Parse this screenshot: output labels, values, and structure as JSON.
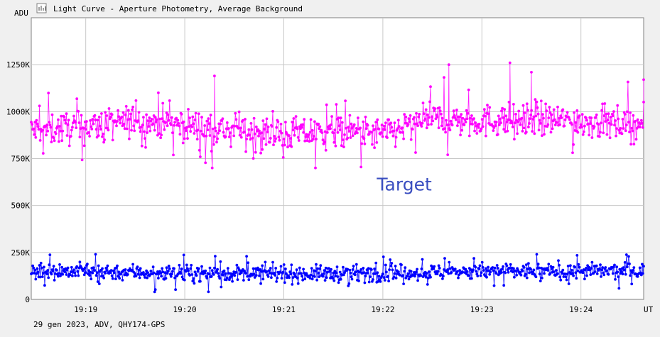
{
  "window": {
    "title": "Light Curve - Aperture Photometry, Average Background",
    "title_icon": "light-curve-icon"
  },
  "footer_text": "29 gen 2023, ADV, QHY174-GPS",
  "chart_data": {
    "type": "scatter",
    "title": "Light Curve - Aperture Photometry, Average Background",
    "ylabel": "ADU",
    "xlabel": "UT",
    "ylim": [
      0,
      1500000
    ],
    "xlim": [
      "19:18:27",
      "19:24:38"
    ],
    "yticks": [
      0,
      250000,
      500000,
      750000,
      1000000,
      1250000
    ],
    "ytick_labels": [
      "0",
      "250K",
      "500K",
      "750K",
      "1000K",
      "1250K"
    ],
    "xticks": [
      "19:19",
      "19:20",
      "19:21",
      "19:22",
      "19:23",
      "19:24"
    ],
    "grid": true,
    "annotations": [
      {
        "text": "Target",
        "x": "19:22:13",
        "y": 580000
      }
    ],
    "series": [
      {
        "color": "#ff00ff",
        "marker": "dot",
        "line": "thin vertical connectors",
        "mean_profile": {
          "x": [
            "19:18:27",
            "19:19:00",
            "19:19:30",
            "19:20:00",
            "19:20:30",
            "19:21:00",
            "19:21:30",
            "19:22:00",
            "19:22:30",
            "19:23:00",
            "19:23:30",
            "19:24:00",
            "19:24:38"
          ],
          "y": [
            900000,
            920000,
            950000,
            930000,
            900000,
            880000,
            890000,
            880000,
            960000,
            950000,
            960000,
            950000,
            930000
          ]
        },
        "typical_range": [
          780000,
          1080000
        ],
        "min": 700000,
        "max": 1260000,
        "peaks": [
          {
            "x": "19:22:40",
            "y": 1250000
          },
          {
            "x": "19:23:17",
            "y": 1260000
          },
          {
            "x": "19:20:18",
            "y": 1190000
          },
          {
            "x": "19:23:30",
            "y": 1210000
          },
          {
            "x": "19:24:38",
            "y": 1170000
          }
        ]
      },
      {
        "color": "#0000ff",
        "marker": "dot",
        "line": "thin vertical connectors",
        "mean_profile": {
          "x": [
            "19:18:27",
            "19:19:00",
            "19:20:00",
            "19:21:00",
            "19:22:00",
            "19:23:00",
            "19:24:00",
            "19:24:38"
          ],
          "y": [
            150000,
            150000,
            140000,
            135000,
            140000,
            150000,
            150000,
            150000
          ]
        },
        "typical_range": [
          70000,
          220000
        ],
        "min": 40000,
        "max": 240000
      }
    ]
  }
}
